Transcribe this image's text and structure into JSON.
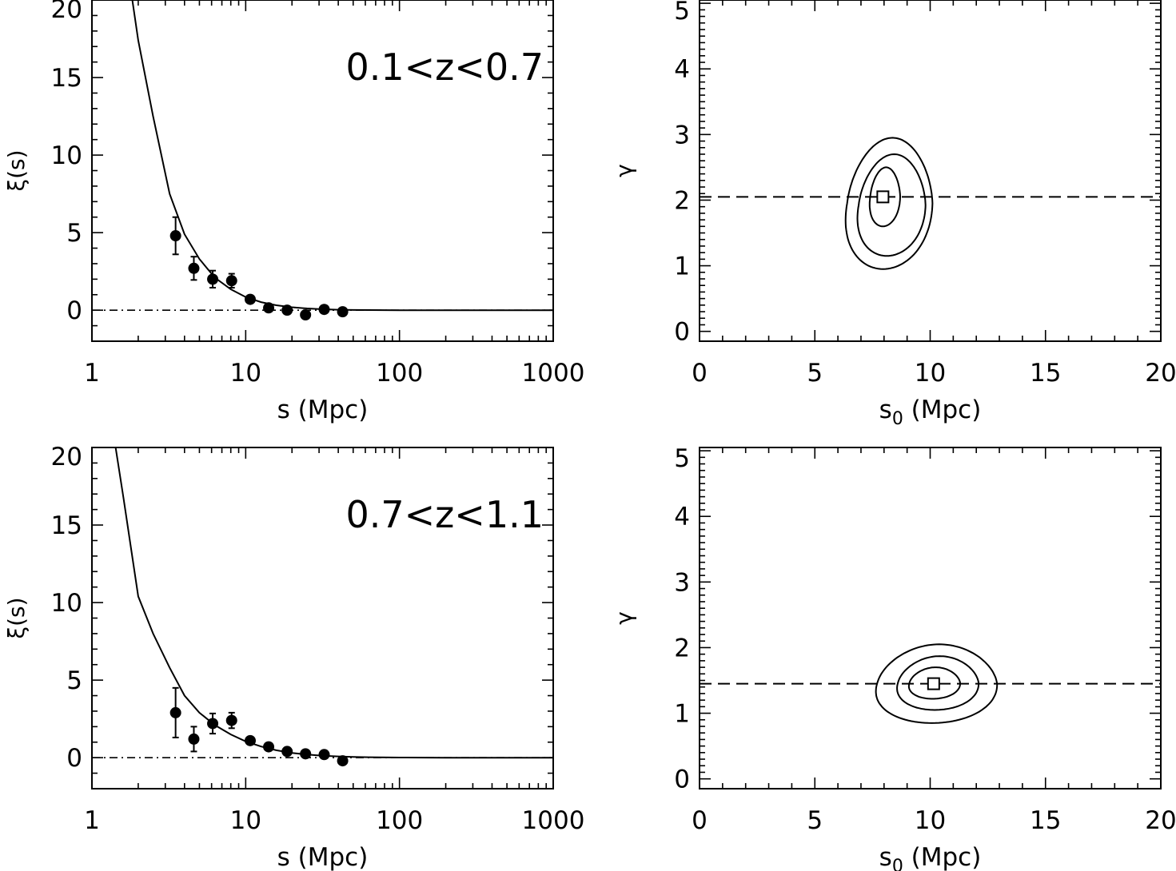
{
  "colors": {
    "ink": "#000000",
    "background": "#ffffff"
  },
  "chart_data": [
    {
      "type": "scatter",
      "panel": "top-left",
      "xscale": "log",
      "xlim": [
        1,
        1000
      ],
      "ylim": [
        -2,
        20
      ],
      "xticks": [
        "1",
        "10",
        "100",
        "1000"
      ],
      "yticks": [
        "0",
        "5",
        "10",
        "15",
        "20"
      ],
      "xlabel": "s (Mpc)",
      "ylabel": "ξ(s)",
      "annotation": "0.1<z<0.7",
      "points": {
        "x": [
          3.5,
          4.6,
          6.1,
          8.1,
          10.7,
          14.1,
          18.6,
          24.5,
          32.4,
          42.7
        ],
        "y": [
          4.8,
          2.7,
          2.0,
          1.9,
          0.7,
          0.15,
          0.0,
          -0.3,
          0.05,
          -0.1
        ],
        "err": [
          1.2,
          0.75,
          0.55,
          0.45,
          0.2,
          0.12,
          0.1,
          0.12,
          0.1,
          0.08
        ]
      },
      "model_curve": {
        "x": [
          1.8,
          2.0,
          2.5,
          3.2,
          4.0,
          5.0,
          6.3,
          8.0,
          10.0,
          12.6,
          15.8,
          20.0,
          25.1,
          31.6,
          40.0,
          50.0,
          63.0,
          100.0,
          200.0,
          1000.0
        ],
        "y": [
          20.5,
          17.4,
          12.5,
          7.5,
          4.9,
          3.3,
          2.1,
          1.35,
          0.85,
          0.52,
          0.32,
          0.19,
          0.11,
          0.06,
          0.03,
          0.015,
          0.01,
          0.0,
          0.0,
          0.0
        ]
      },
      "reference_line": {
        "y": 0,
        "style": "dash-dot"
      }
    },
    {
      "type": "contour",
      "panel": "top-right",
      "xlim": [
        0,
        20
      ],
      "ylim": [
        -0.15,
        5.05
      ],
      "xticks": [
        "0",
        "5",
        "10",
        "15",
        "20"
      ],
      "yticks": [
        "0",
        "1",
        "2",
        "3",
        "4",
        "5"
      ],
      "xlabel_main": "s",
      "xlabel_sub": "0",
      "xlabel_rest": " (Mpc)",
      "ylabel": "γ",
      "best_fit": {
        "s0": 7.95,
        "gamma": 2.05
      },
      "reference_line": {
        "y": 2.05,
        "style": "dashed"
      },
      "contours": [
        {
          "center": [
            8.0,
            2.05
          ],
          "extent_x": [
            7.4,
            8.7
          ],
          "extent_y": [
            1.6,
            2.5
          ],
          "tilt": 0.45
        },
        {
          "center": [
            8.1,
            2.05
          ],
          "extent_x": [
            6.9,
            9.8
          ],
          "extent_y": [
            1.15,
            2.7
          ],
          "tilt": 0.45
        },
        {
          "center": [
            8.2,
            2.05
          ],
          "extent_x": [
            6.4,
            10.1
          ],
          "extent_y": [
            0.95,
            2.95
          ],
          "tilt": 0.45
        }
      ]
    },
    {
      "type": "scatter",
      "panel": "bottom-left",
      "xscale": "log",
      "xlim": [
        1,
        1000
      ],
      "ylim": [
        -2,
        20
      ],
      "xticks": [
        "1",
        "10",
        "100",
        "1000"
      ],
      "yticks": [
        "0",
        "5",
        "10",
        "15",
        "20"
      ],
      "xlabel": "s (Mpc)",
      "ylabel": "ξ(s)",
      "annotation": "0.7<z<1.1",
      "points": {
        "x": [
          3.5,
          4.6,
          6.1,
          8.1,
          10.7,
          14.1,
          18.6,
          24.5,
          32.4,
          42.7
        ],
        "y": [
          2.9,
          1.2,
          2.2,
          2.4,
          1.1,
          0.7,
          0.4,
          0.25,
          0.2,
          -0.2
        ],
        "err": [
          1.6,
          0.8,
          0.65,
          0.5,
          0.22,
          0.18,
          0.14,
          0.12,
          0.1,
          0.1
        ]
      },
      "model_curve": {
        "x": [
          1.4,
          1.6,
          2.0,
          2.5,
          3.2,
          4.0,
          5.0,
          6.3,
          8.0,
          10.0,
          12.6,
          15.8,
          20.0,
          25.1,
          31.6,
          40.0,
          50.0,
          63.0,
          100.0,
          200.0,
          1000.0
        ],
        "y": [
          20.5,
          16.8,
          10.4,
          8.0,
          5.8,
          4.0,
          2.9,
          2.1,
          1.5,
          1.05,
          0.72,
          0.48,
          0.31,
          0.2,
          0.13,
          0.08,
          0.05,
          0.03,
          0.01,
          0.0,
          0.0
        ]
      },
      "reference_line": {
        "y": 0,
        "style": "dash-dot"
      }
    },
    {
      "type": "contour",
      "panel": "bottom-right",
      "xlim": [
        0,
        20
      ],
      "ylim": [
        -0.15,
        5.05
      ],
      "xticks": [
        "0",
        "5",
        "10",
        "15",
        "20"
      ],
      "yticks": [
        "0",
        "1",
        "2",
        "3",
        "4",
        "5"
      ],
      "xlabel_main": "s",
      "xlabel_sub": "0",
      "xlabel_rest": " (Mpc)",
      "ylabel": "γ",
      "best_fit": {
        "s0": 10.15,
        "gamma": 1.45
      },
      "reference_line": {
        "y": 1.45,
        "style": "dashed"
      },
      "contours": [
        {
          "center": [
            10.2,
            1.45
          ],
          "extent_x": [
            9.1,
            11.3
          ],
          "extent_y": [
            1.22,
            1.7
          ],
          "tilt": 0.25
        },
        {
          "center": [
            10.3,
            1.45
          ],
          "extent_x": [
            8.6,
            12.1
          ],
          "extent_y": [
            1.05,
            1.87
          ],
          "tilt": 0.25
        },
        {
          "center": [
            10.4,
            1.45
          ],
          "extent_x": [
            7.7,
            12.9
          ],
          "extent_y": [
            0.85,
            2.05
          ],
          "tilt": 0.25
        }
      ]
    }
  ]
}
